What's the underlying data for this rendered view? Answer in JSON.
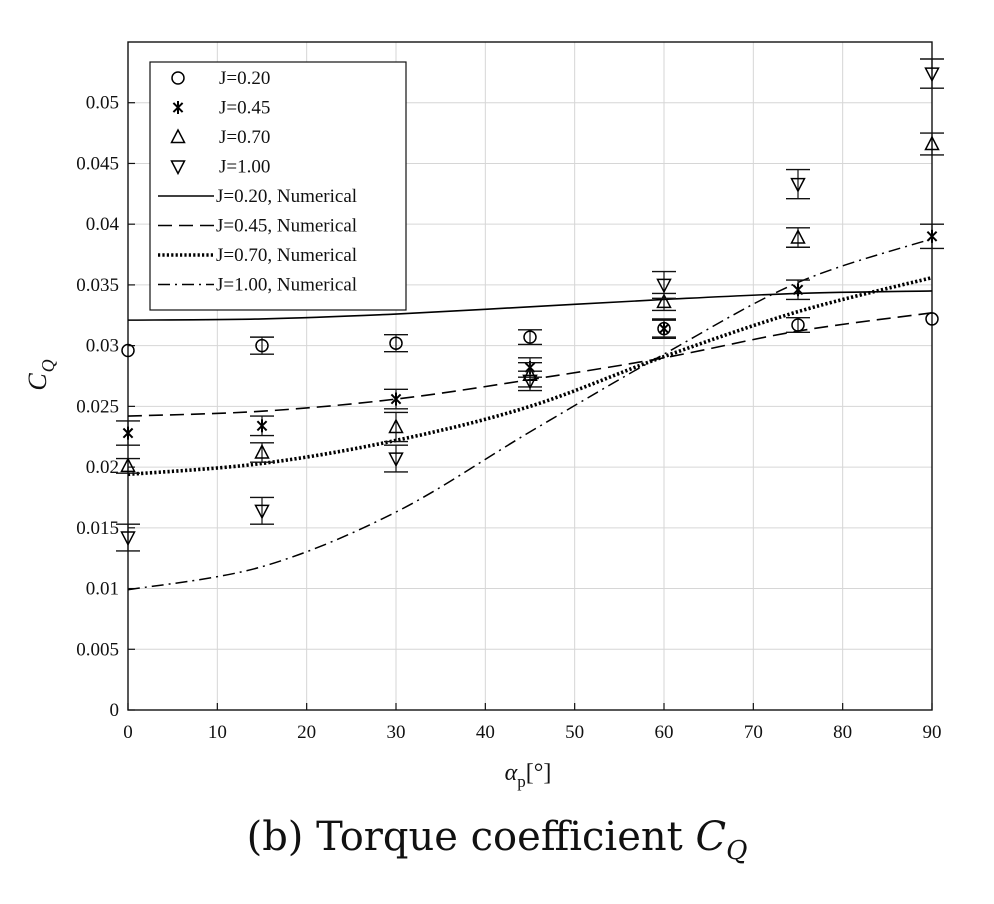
{
  "caption": {
    "prefix": "(b) Torque coefficient ",
    "symbol": "C",
    "subscript": "Q"
  },
  "chart_data": {
    "type": "scatter",
    "ylabel": {
      "main": "C",
      "sub": "Q"
    },
    "xlabel": {
      "main": "α",
      "sub": "p",
      "suffix": "[°]"
    },
    "xlim": [
      0,
      90
    ],
    "ylim": [
      0,
      0.055
    ],
    "xticks": [
      0,
      10,
      20,
      30,
      40,
      50,
      60,
      70,
      80,
      90
    ],
    "yticks": [
      0,
      0.005,
      0.01,
      0.015,
      0.02,
      0.025,
      0.03,
      0.035,
      0.04,
      0.045,
      0.05
    ],
    "ytick_labels": [
      "0",
      "0.005",
      "0.01",
      "0.015",
      "0.02",
      "0.025",
      "0.03",
      "0.035",
      "0.04",
      "0.045",
      "0.05"
    ],
    "grid": true,
    "legend_position": "top-left",
    "experimental": [
      {
        "name": "J=0.20",
        "marker": "circle",
        "x": [
          0,
          15,
          30,
          45,
          60,
          75,
          90
        ],
        "y": [
          0.0296,
          0.03,
          0.0302,
          0.0307,
          0.0314,
          0.0317,
          0.0322
        ],
        "err": [
          0,
          0.0007,
          0.0007,
          0.0006,
          0.0007,
          0.0006,
          0
        ],
        "color": "#000000"
      },
      {
        "name": "J=0.45",
        "marker": "star",
        "x": [
          0,
          15,
          30,
          45,
          60,
          75,
          90
        ],
        "y": [
          0.0228,
          0.0234,
          0.0256,
          0.0282,
          0.0314,
          0.0346,
          0.039
        ],
        "err": [
          0.001,
          0.0008,
          0.0008,
          0.0008,
          0.0008,
          0.0008,
          0.001
        ],
        "color": "#000000"
      },
      {
        "name": "J=0.70",
        "marker": "triangle-up",
        "x": [
          0,
          15,
          30,
          45,
          60,
          75,
          90
        ],
        "y": [
          0.0201,
          0.0212,
          0.0233,
          0.0276,
          0.0336,
          0.0389,
          0.0466
        ],
        "err": [
          0.0006,
          0.0008,
          0.0012,
          0.001,
          0.0007,
          0.0008,
          0.0009
        ],
        "color": "#000000"
      },
      {
        "name": "J=1.00",
        "marker": "triangle-down",
        "x": [
          0,
          15,
          30,
          45,
          60,
          75,
          90
        ],
        "y": [
          0.0142,
          0.0164,
          0.0207,
          0.0271,
          0.035,
          0.0433,
          0.0524
        ],
        "err": [
          0.0011,
          0.0011,
          0.0011,
          0.0008,
          0.0011,
          0.0012,
          0.0012
        ],
        "color": "#000000"
      }
    ],
    "numerical": [
      {
        "name": "J=0.20, Numerical",
        "dash": "solid",
        "x": [
          0,
          15,
          30,
          45,
          60,
          75,
          90
        ],
        "y": [
          0.0321,
          0.0322,
          0.0326,
          0.0332,
          0.0338,
          0.0343,
          0.0345
        ],
        "color": "#000000"
      },
      {
        "name": "J=0.45, Numerical",
        "dash": "dashed",
        "x": [
          0,
          15,
          30,
          45,
          60,
          75,
          90
        ],
        "y": [
          0.0242,
          0.0246,
          0.0256,
          0.0272,
          0.029,
          0.0312,
          0.0327
        ],
        "color": "#000000"
      },
      {
        "name": "J=0.70, Numerical",
        "dash": "dotted",
        "x": [
          0,
          15,
          30,
          45,
          60,
          75,
          90
        ],
        "y": [
          0.0194,
          0.0203,
          0.0222,
          0.025,
          0.0291,
          0.0328,
          0.0356
        ],
        "color": "#000000"
      },
      {
        "name": "J=1.00, Numerical",
        "dash": "dash-dot",
        "x": [
          0,
          15,
          30,
          45,
          60,
          75,
          90
        ],
        "y": [
          0.0099,
          0.0118,
          0.0163,
          0.0229,
          0.0293,
          0.0352,
          0.0388
        ],
        "color": "#000000"
      }
    ]
  }
}
